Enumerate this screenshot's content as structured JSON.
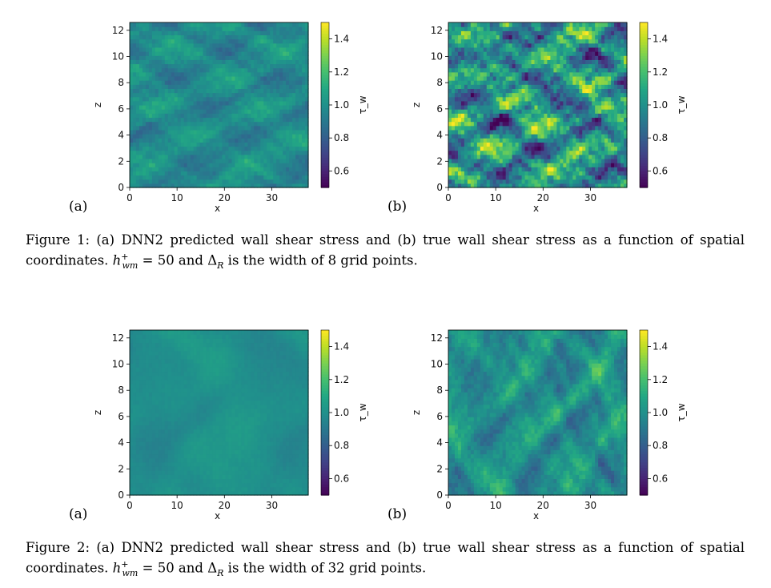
{
  "figures": [
    {
      "id": "fig1",
      "caption_label": "Figure 1:",
      "caption_part1": " (a) DNN2 predicted wall shear stress and (b) true wall shear stress as a function of spatial coordinates. ",
      "caption_var": "h",
      "caption_sup": "+",
      "caption_sub": "wm",
      "caption_eq": " = 50 and Δ",
      "caption_R": "R",
      "caption_part2": " is the width of 8 grid points.",
      "panels": [
        {
          "label": "(a)",
          "style": "streaky",
          "palette": "muted"
        },
        {
          "label": "(b)",
          "style": "streaky",
          "palette": "vivid"
        }
      ]
    },
    {
      "id": "fig2",
      "caption_label": "Figure 2:",
      "caption_part1": " (a) DNN2 predicted wall shear stress and (b) true wall shear stress as a function of spatial coordinates. ",
      "caption_var": "h",
      "caption_sup": "+",
      "caption_sub": "wm",
      "caption_eq": " = 50 and Δ",
      "caption_R": "R",
      "caption_part2": " is the width of 32 grid points.",
      "panels": [
        {
          "label": "(a)",
          "style": "smooth",
          "palette": "flat"
        },
        {
          "label": "(b)",
          "style": "blotchy",
          "palette": "medium"
        }
      ]
    }
  ],
  "chart_data": {
    "type": "heatmap",
    "xlabel": "x",
    "ylabel": "z",
    "colorbar_label": "τ_w",
    "xlim": [
      0,
      37.7
    ],
    "ylim": [
      0,
      12.6
    ],
    "x_ticks": [
      0,
      10,
      20,
      30
    ],
    "z_ticks": [
      0,
      2,
      4,
      6,
      8,
      10,
      12
    ],
    "color_range": [
      0.5,
      1.5
    ],
    "colorbar_ticks": [
      0.6,
      0.8,
      1.0,
      1.2,
      1.4
    ],
    "colormap": "viridis",
    "colorbar_tick_labels": [
      "0.6",
      "0.8",
      "1.0",
      "1.2",
      "1.4"
    ],
    "x_tick_labels": [
      "0",
      "10",
      "20",
      "30"
    ],
    "z_tick_labels": [
      "0",
      "2",
      "4",
      "6",
      "8",
      "10",
      "12"
    ]
  }
}
